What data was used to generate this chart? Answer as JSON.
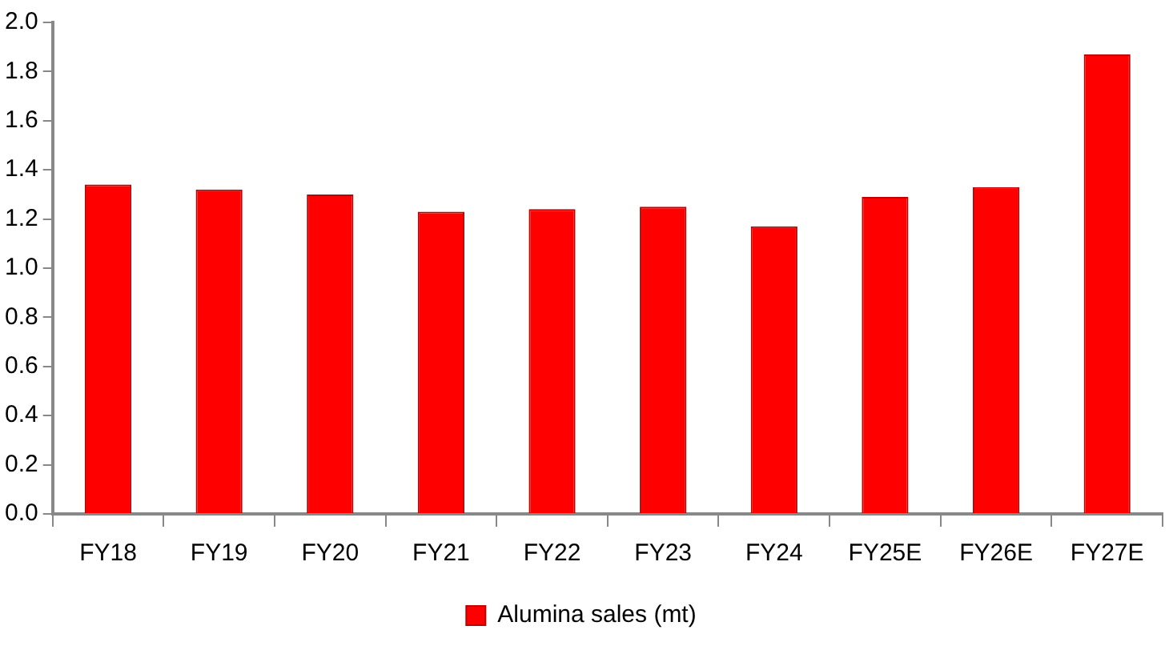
{
  "chart_data": {
    "type": "bar",
    "categories": [
      "FY18",
      "FY19",
      "FY20",
      "FY21",
      "FY22",
      "FY23",
      "FY24",
      "FY25E",
      "FY26E",
      "FY27E"
    ],
    "series": [
      {
        "name": "Alumina sales (mt)",
        "color": "#ff0000",
        "values": [
          1.34,
          1.32,
          1.3,
          1.23,
          1.24,
          1.25,
          1.17,
          1.29,
          1.33,
          1.87
        ]
      }
    ],
    "ylim": [
      0,
      2
    ],
    "yticks": [
      {
        "value": 0,
        "label": "0.0"
      },
      0.2,
      0.4,
      0.6,
      0.8,
      {
        "value": 1,
        "label": "1.0"
      },
      1.2,
      1.4,
      1.6,
      1.8,
      {
        "value": 2,
        "label": "2.0"
      }
    ],
    "grid": false,
    "legend": "bottom"
  }
}
